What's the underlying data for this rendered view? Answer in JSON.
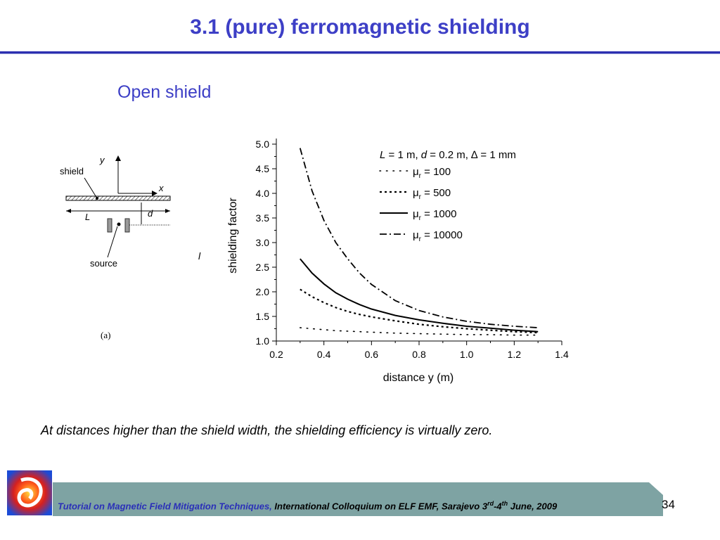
{
  "slide": {
    "title": "3.1 (pure) ferromagnetic shielding",
    "subtitle": "Open shield",
    "caption": "At distances higher than the shield width, the shielding efficiency is virtually zero.",
    "page_number": "34",
    "fig_label": "(a)",
    "stray_label": "l"
  },
  "footer": {
    "part1": "Tutorial on Magnetic Field Mitigation Techniques,",
    "part2": " International Colloquium on ELF EMF, Sarajevo 3",
    "sup1": "rd",
    "part3": "-4",
    "sup2": "th",
    "part4": " June, 2009",
    "band_color": "#7ea3a3"
  },
  "diagram": {
    "label_shield": "shield",
    "label_y": "y",
    "label_x": "x",
    "label_L": "L",
    "label_d": "d",
    "label_source": "source"
  },
  "chart_data": {
    "type": "line",
    "xlabel": "distance y (m)",
    "ylabel": "shielding factor",
    "xlim": [
      0.2,
      1.4
    ],
    "ylim": [
      1.0,
      5.0
    ],
    "xticks": [
      "0.2",
      "0.4",
      "0.6",
      "0.8",
      "1.0",
      "1.2",
      "1.4"
    ],
    "yticks": [
      "1.0",
      "1.5",
      "2.0",
      "2.5",
      "3.0",
      "3.5",
      "4.0",
      "4.5",
      "5.0"
    ],
    "legend_title": {
      "L": "L",
      "part1": " = 1 m, ",
      "d": "d",
      "part2": " = 0.2 m, ∆ = 1 mm"
    },
    "legend_placement": "top-right",
    "x": [
      0.3,
      0.35,
      0.4,
      0.45,
      0.5,
      0.55,
      0.6,
      0.7,
      0.8,
      0.9,
      1.0,
      1.1,
      1.2,
      1.3
    ],
    "series": [
      {
        "name_mu": "μ",
        "name_sub": "r",
        "name_rest": " = 100",
        "style": "dotted",
        "values": [
          1.27,
          1.25,
          1.23,
          1.21,
          1.2,
          1.19,
          1.18,
          1.16,
          1.15,
          1.14,
          1.13,
          1.13,
          1.12,
          1.12
        ]
      },
      {
        "name_mu": "μ",
        "name_sub": "r",
        "name_rest": " = 500",
        "style": "short-dash",
        "values": [
          2.05,
          1.9,
          1.78,
          1.68,
          1.6,
          1.54,
          1.49,
          1.41,
          1.34,
          1.29,
          1.25,
          1.22,
          1.19,
          1.17
        ]
      },
      {
        "name_mu": "μ",
        "name_sub": "r",
        "name_rest": " = 1000",
        "style": "solid",
        "values": [
          2.67,
          2.38,
          2.16,
          1.98,
          1.85,
          1.74,
          1.65,
          1.52,
          1.43,
          1.36,
          1.3,
          1.26,
          1.22,
          1.19
        ]
      },
      {
        "name_mu": "μ",
        "name_sub": "r",
        "name_rest": " = 10000",
        "style": "dash-dot",
        "values": [
          4.92,
          4.05,
          3.45,
          3.0,
          2.67,
          2.38,
          2.15,
          1.82,
          1.62,
          1.49,
          1.4,
          1.34,
          1.3,
          1.27
        ]
      }
    ]
  }
}
